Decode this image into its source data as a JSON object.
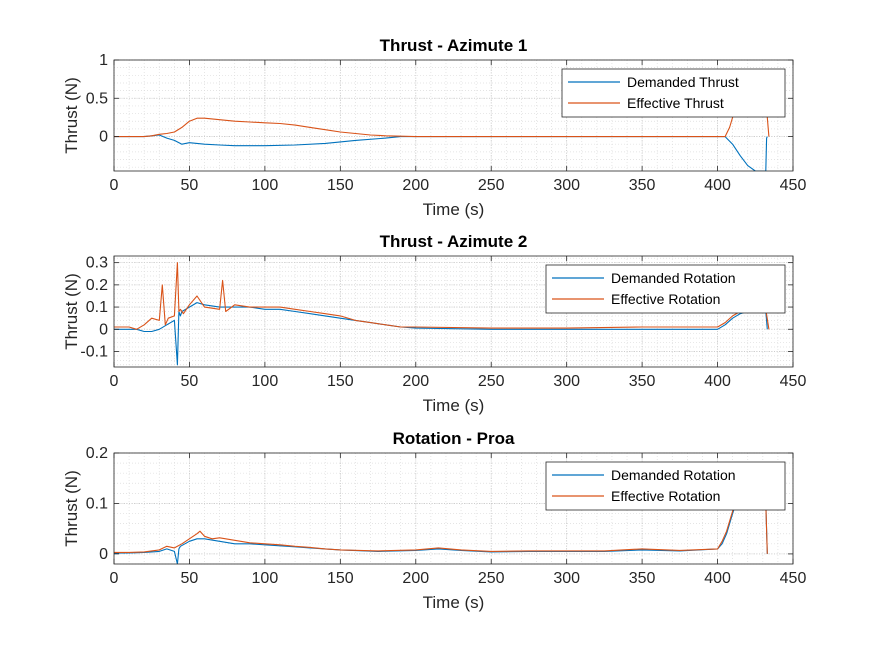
{
  "chart_data": [
    {
      "type": "line",
      "title": "Thrust - Azimute 1",
      "xlabel": "Time (s)",
      "ylabel": "Thrust (N)",
      "xlim": [
        0,
        450
      ],
      "ylim": [
        -0.45,
        1
      ],
      "xticks": [
        0,
        50,
        100,
        150,
        200,
        250,
        300,
        350,
        400,
        450
      ],
      "yticks": [
        0,
        0.5,
        1
      ],
      "ytick_labels": [
        "0",
        "0.5",
        "1"
      ],
      "grid": true,
      "minor_grid": true,
      "legend_position": "top-right",
      "series": [
        {
          "name": "Demanded Thrust",
          "color": "#0072BD",
          "x": [
            0,
            10,
            20,
            25,
            30,
            35,
            40,
            45,
            50,
            60,
            70,
            80,
            100,
            120,
            140,
            160,
            180,
            190,
            200,
            250,
            300,
            350,
            400,
            405,
            410,
            415,
            420,
            425,
            430,
            432,
            432.5,
            433
          ],
          "y": [
            0,
            0,
            0,
            0.01,
            0.02,
            -0.02,
            -0.05,
            -0.1,
            -0.08,
            -0.1,
            -0.11,
            -0.12,
            -0.12,
            -0.11,
            -0.09,
            -0.05,
            -0.02,
            0,
            0,
            0,
            0,
            0,
            0,
            0,
            -0.1,
            -0.25,
            -0.38,
            -0.45,
            -0.45,
            -0.45,
            -0.02,
            0
          ]
        },
        {
          "name": "Effective Thrust",
          "color": "#D95319",
          "x": [
            0,
            10,
            20,
            25,
            30,
            35,
            40,
            45,
            50,
            55,
            60,
            70,
            80,
            90,
            100,
            110,
            120,
            130,
            140,
            150,
            160,
            170,
            180,
            190,
            200,
            250,
            300,
            350,
            400,
            405,
            408,
            410,
            412,
            432,
            433,
            434
          ],
          "y": [
            0,
            0,
            0,
            0.01,
            0.03,
            0.04,
            0.06,
            0.12,
            0.2,
            0.24,
            0.24,
            0.22,
            0.2,
            0.19,
            0.18,
            0.17,
            0.15,
            0.12,
            0.09,
            0.06,
            0.04,
            0.02,
            0.01,
            0.005,
            0,
            0,
            0,
            0,
            0,
            0,
            0.12,
            0.25,
            0.4,
            0.4,
            0.25,
            0
          ]
        }
      ]
    },
    {
      "type": "line",
      "title": "Thrust - Azimute 2",
      "xlabel": "Time (s)",
      "ylabel": "Thrust (N)",
      "xlim": [
        0,
        450
      ],
      "ylim": [
        -0.17,
        0.33
      ],
      "xticks": [
        0,
        50,
        100,
        150,
        200,
        250,
        300,
        350,
        400,
        450
      ],
      "yticks": [
        -0.1,
        0,
        0.1,
        0.2,
        0.3
      ],
      "ytick_labels": [
        "-0.1",
        "0",
        "0.1",
        "0.2",
        "0.3"
      ],
      "grid": true,
      "minor_grid": true,
      "legend_position": "top-right",
      "series": [
        {
          "name": "Demanded Rotation",
          "color": "#0072BD",
          "x": [
            0,
            15,
            20,
            25,
            30,
            35,
            40,
            42,
            43,
            44,
            45,
            50,
            55,
            60,
            70,
            80,
            90,
            100,
            110,
            120,
            130,
            140,
            150,
            160,
            170,
            180,
            190,
            200,
            250,
            300,
            350,
            400,
            405,
            410,
            415,
            420,
            430,
            432,
            433
          ],
          "y": [
            0,
            0,
            -0.01,
            -0.01,
            0,
            0.02,
            0.04,
            -0.16,
            0.08,
            0.06,
            0.08,
            0.1,
            0.12,
            0.11,
            0.1,
            0.1,
            0.1,
            0.09,
            0.09,
            0.08,
            0.07,
            0.06,
            0.05,
            0.04,
            0.03,
            0.02,
            0.01,
            0.005,
            0,
            0,
            0,
            0,
            0.02,
            0.05,
            0.07,
            0.08,
            0.08,
            0.08,
            0
          ]
        },
        {
          "name": "Effective Rotation",
          "color": "#D95319",
          "x": [
            0,
            10,
            15,
            20,
            25,
            30,
            32,
            34,
            36,
            40,
            42,
            43,
            44,
            46,
            50,
            55,
            60,
            70,
            72,
            74,
            80,
            90,
            100,
            110,
            120,
            130,
            140,
            150,
            160,
            170,
            180,
            190,
            200,
            250,
            300,
            350,
            400,
            405,
            410,
            415,
            420,
            430,
            432,
            434
          ],
          "y": [
            0.01,
            0.01,
            0,
            0.02,
            0.05,
            0.04,
            0.2,
            0.02,
            0.05,
            0.06,
            0.3,
            0.08,
            0.09,
            0.07,
            0.11,
            0.15,
            0.1,
            0.09,
            0.22,
            0.08,
            0.11,
            0.1,
            0.1,
            0.1,
            0.09,
            0.08,
            0.07,
            0.06,
            0.04,
            0.03,
            0.02,
            0.01,
            0.01,
            0.005,
            0.005,
            0.01,
            0.01,
            0.03,
            0.06,
            0.08,
            0.09,
            0.09,
            0.09,
            0
          ]
        }
      ]
    },
    {
      "type": "line",
      "title": "Rotation - Proa",
      "xlabel": "Time (s)",
      "ylabel": "Thrust (N)",
      "xlim": [
        0,
        450
      ],
      "ylim": [
        -0.02,
        0.2
      ],
      "xticks": [
        0,
        50,
        100,
        150,
        200,
        250,
        300,
        350,
        400,
        450
      ],
      "yticks": [
        0,
        0.1,
        0.2
      ],
      "ytick_labels": [
        "0",
        "0.1",
        "0.2"
      ],
      "grid": true,
      "minor_grid": true,
      "legend_position": "top-right",
      "series": [
        {
          "name": "Demanded Rotation",
          "color": "#0072BD",
          "x": [
            0,
            10,
            20,
            30,
            35,
            40,
            42,
            43,
            44,
            50,
            55,
            60,
            70,
            80,
            90,
            100,
            110,
            120,
            130,
            140,
            150,
            175,
            200,
            215,
            230,
            250,
            275,
            300,
            325,
            350,
            375,
            400,
            403,
            406,
            409,
            411,
            413,
            432,
            433
          ],
          "y": [
            0.002,
            0.002,
            0.003,
            0.005,
            0.01,
            0.005,
            -0.02,
            0.01,
            0.015,
            0.025,
            0.03,
            0.03,
            0.025,
            0.02,
            0.02,
            0.018,
            0.016,
            0.014,
            0.012,
            0.01,
            0.008,
            0.005,
            0.007,
            0.01,
            0.007,
            0.004,
            0.005,
            0.005,
            0.005,
            0.008,
            0.006,
            0.01,
            0.02,
            0.04,
            0.07,
            0.09,
            0.1,
            0.1,
            0
          ]
        },
        {
          "name": "Effective Rotation",
          "color": "#D95319",
          "x": [
            0,
            10,
            20,
            30,
            35,
            40,
            45,
            50,
            55,
            57,
            60,
            65,
            70,
            80,
            90,
            100,
            110,
            120,
            130,
            140,
            150,
            175,
            200,
            215,
            230,
            250,
            275,
            300,
            325,
            350,
            375,
            400,
            403,
            406,
            409,
            411,
            413,
            432,
            433
          ],
          "y": [
            0.003,
            0.003,
            0.004,
            0.008,
            0.015,
            0.012,
            0.02,
            0.03,
            0.04,
            0.045,
            0.035,
            0.03,
            0.032,
            0.027,
            0.022,
            0.02,
            0.018,
            0.015,
            0.013,
            0.01,
            0.008,
            0.006,
            0.008,
            0.012,
            0.008,
            0.005,
            0.006,
            0.006,
            0.006,
            0.01,
            0.007,
            0.01,
            0.025,
            0.045,
            0.075,
            0.095,
            0.1,
            0.1,
            0
          ]
        }
      ]
    }
  ]
}
